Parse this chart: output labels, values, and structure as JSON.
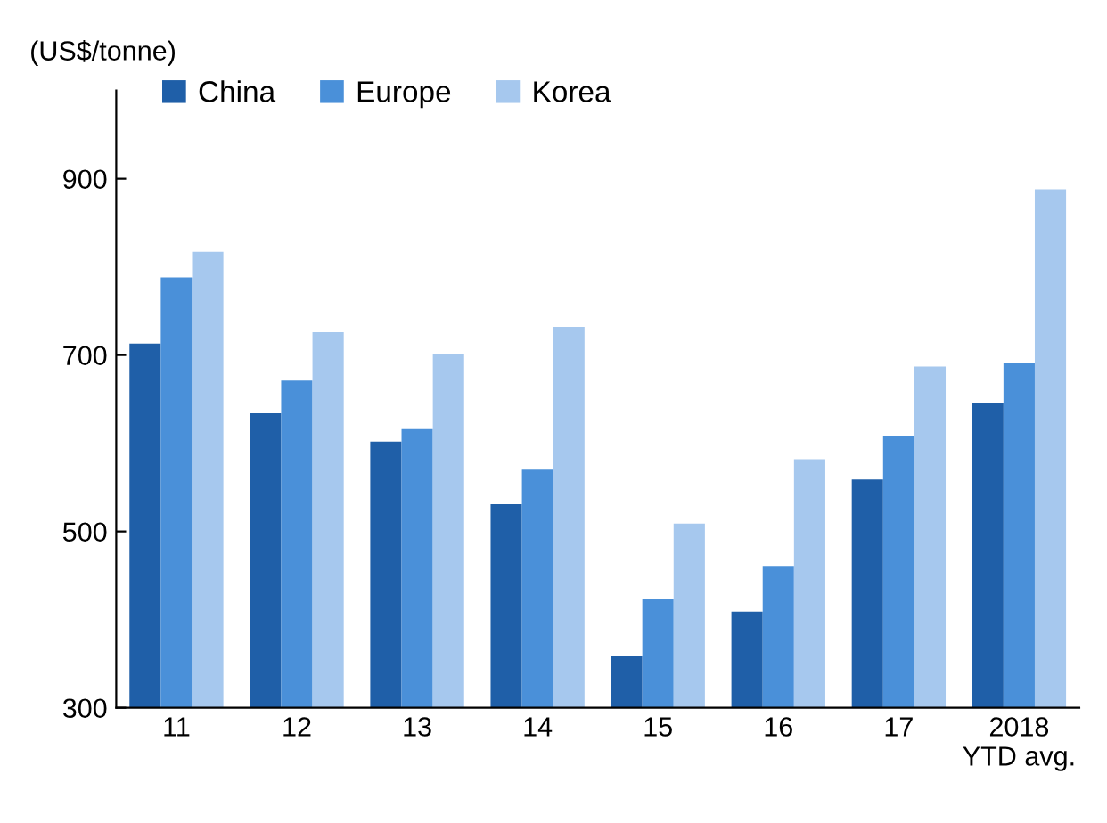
{
  "chart_data": {
    "type": "bar",
    "ylabel": "(US$/tonne)",
    "categories": [
      "11",
      "12",
      "13",
      "14",
      "15",
      "16",
      "17",
      "2018\nYTD avg."
    ],
    "series": [
      {
        "name": "China",
        "color": "#1f5fa8",
        "values": [
          713,
          634,
          602,
          531,
          359,
          409,
          559,
          646
        ]
      },
      {
        "name": "Europe",
        "color": "#4a90d9",
        "values": [
          788,
          671,
          616,
          570,
          424,
          460,
          608,
          691
        ]
      },
      {
        "name": "Korea",
        "color": "#a6c8ee",
        "values": [
          817,
          726,
          701,
          732,
          509,
          582,
          687,
          888
        ]
      }
    ],
    "ylim": [
      300,
      1000
    ],
    "yticks": [
      300,
      500,
      700,
      900
    ],
    "grid": false,
    "legend": "top left"
  }
}
